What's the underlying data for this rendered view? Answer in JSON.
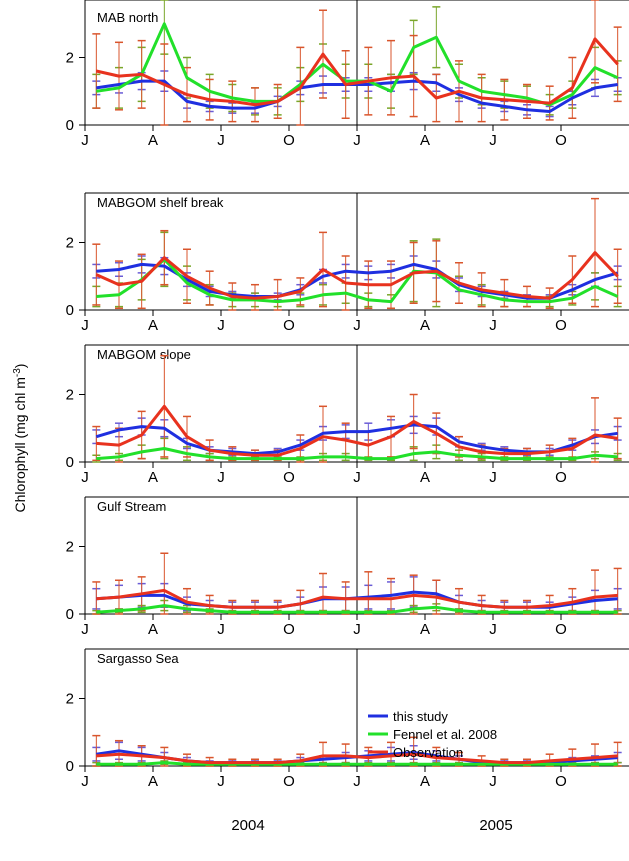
{
  "figure": {
    "ylabel": "Chlorophyll (mg chl m",
    "ylabel_sup": "-3",
    "ylabel_end": ")",
    "years": [
      "2004",
      "2005"
    ],
    "month_ticks": [
      "J",
      "A",
      "J",
      "O",
      "J",
      "A",
      "J",
      "O"
    ]
  },
  "legend": {
    "entries": [
      {
        "label": "this study",
        "color": "#1f2fe0"
      },
      {
        "label": "Fennel et al. 2008",
        "color": "#22e02a"
      },
      {
        "label": "Observation",
        "color": "#e8321e"
      }
    ]
  },
  "colors": {
    "this_study": "#1f2fe0",
    "fennel": "#22e02a",
    "observation": "#e8321e",
    "err_this_study": "#6a5cd6",
    "err_fennel": "#7aa62a",
    "err_observation": "#d9552c"
  },
  "chart_data": [
    {
      "type": "line",
      "title": "MAB north",
      "ylim": [
        0,
        3.5
      ],
      "yticks": [
        0,
        2
      ],
      "x": [
        0.5,
        1.5,
        2.5,
        3.5,
        4.5,
        5.5,
        6.5,
        7.5,
        8.5,
        9.5,
        10.5,
        11.5,
        12.5,
        13.5,
        14.5,
        15.5,
        16.5,
        17.5,
        18.5,
        19.5,
        20.5,
        21.5,
        22.5,
        23.5
      ],
      "series": [
        {
          "name": "this study",
          "values": [
            1.1,
            1.2,
            1.3,
            1.3,
            0.7,
            0.55,
            0.5,
            0.5,
            0.7,
            1.1,
            1.2,
            1.2,
            1.2,
            1.25,
            1.3,
            1.25,
            0.9,
            0.65,
            0.55,
            0.45,
            0.4,
            0.8,
            1.1,
            1.2
          ],
          "err": [
            0.2,
            0.25,
            0.25,
            0.3,
            0.2,
            0.15,
            0.15,
            0.15,
            0.15,
            0.2,
            0.25,
            0.2,
            0.2,
            0.25,
            0.25,
            0.25,
            0.2,
            0.15,
            0.15,
            0.15,
            0.15,
            0.2,
            0.25,
            0.2
          ]
        },
        {
          "name": "Fennel et al. 2008",
          "values": [
            1.0,
            1.1,
            1.5,
            3.0,
            1.4,
            1.0,
            0.8,
            0.7,
            0.7,
            1.2,
            1.8,
            1.3,
            1.3,
            1.0,
            2.3,
            2.6,
            1.3,
            1.0,
            0.9,
            0.8,
            0.6,
            0.9,
            1.7,
            1.4
          ],
          "err": [
            0.5,
            0.6,
            0.8,
            0.9,
            0.6,
            0.5,
            0.4,
            0.4,
            0.4,
            0.5,
            0.6,
            0.5,
            0.5,
            0.5,
            0.8,
            0.9,
            0.5,
            0.4,
            0.4,
            0.35,
            0.3,
            0.4,
            0.6,
            0.5
          ]
        },
        {
          "name": "Observation",
          "values": [
            1.6,
            1.45,
            1.5,
            1.2,
            0.9,
            0.75,
            0.7,
            0.6,
            0.7,
            1.1,
            2.1,
            1.2,
            1.3,
            1.4,
            1.45,
            0.8,
            1.0,
            0.8,
            0.75,
            0.7,
            0.65,
            1.1,
            2.55,
            1.8
          ],
          "err": [
            1.1,
            1.0,
            1.0,
            1.2,
            0.8,
            0.6,
            0.6,
            0.5,
            0.5,
            1.2,
            1.3,
            1.0,
            1.0,
            1.1,
            1.2,
            0.7,
            0.9,
            0.7,
            0.6,
            0.5,
            0.5,
            0.9,
            1.3,
            1.1
          ]
        }
      ]
    },
    {
      "type": "line",
      "title": "MABGOM shelf break",
      "ylim": [
        0,
        3.5
      ],
      "yticks": [
        0,
        2
      ],
      "x": [
        0.5,
        1.5,
        2.5,
        3.5,
        4.5,
        5.5,
        6.5,
        7.5,
        8.5,
        9.5,
        10.5,
        11.5,
        12.5,
        13.5,
        14.5,
        15.5,
        16.5,
        17.5,
        18.5,
        19.5,
        20.5,
        21.5,
        22.5,
        23.5
      ],
      "series": [
        {
          "name": "this study",
          "values": [
            1.15,
            1.2,
            1.35,
            1.3,
            0.9,
            0.55,
            0.45,
            0.4,
            0.4,
            0.6,
            1.0,
            1.15,
            1.1,
            1.15,
            1.35,
            1.2,
            0.75,
            0.55,
            0.45,
            0.35,
            0.35,
            0.6,
            0.9,
            1.1
          ],
          "err": [
            0.2,
            0.2,
            0.25,
            0.25,
            0.2,
            0.15,
            0.1,
            0.1,
            0.1,
            0.15,
            0.2,
            0.2,
            0.2,
            0.2,
            0.25,
            0.25,
            0.2,
            0.15,
            0.1,
            0.1,
            0.1,
            0.15,
            0.2,
            0.2
          ]
        },
        {
          "name": "Fennel et al. 2008",
          "values": [
            0.4,
            0.45,
            0.9,
            1.5,
            0.8,
            0.45,
            0.3,
            0.3,
            0.25,
            0.3,
            0.45,
            0.5,
            0.3,
            0.25,
            1.15,
            1.1,
            0.6,
            0.45,
            0.3,
            0.25,
            0.25,
            0.35,
            0.7,
            0.4
          ],
          "err": [
            0.3,
            0.35,
            0.6,
            0.8,
            0.5,
            0.3,
            0.2,
            0.2,
            0.15,
            0.2,
            0.3,
            0.3,
            0.2,
            0.2,
            0.9,
            1.0,
            0.4,
            0.3,
            0.2,
            0.15,
            0.15,
            0.2,
            0.4,
            0.3
          ]
        },
        {
          "name": "Observation",
          "values": [
            1.05,
            0.75,
            0.85,
            1.55,
            1.0,
            0.65,
            0.4,
            0.35,
            0.4,
            0.55,
            1.2,
            0.8,
            0.75,
            0.75,
            1.1,
            1.15,
            0.8,
            0.6,
            0.5,
            0.4,
            0.35,
            0.9,
            1.7,
            1.0
          ],
          "err": [
            0.9,
            0.7,
            0.8,
            0.8,
            0.8,
            0.5,
            0.4,
            0.4,
            0.5,
            0.4,
            1.1,
            0.8,
            0.7,
            0.7,
            0.9,
            0.9,
            0.6,
            0.5,
            0.4,
            0.3,
            0.3,
            0.7,
            1.6,
            0.8
          ]
        }
      ]
    },
    {
      "type": "line",
      "title": "MABGOM slope",
      "ylim": [
        0,
        3.5
      ],
      "yticks": [
        0,
        2
      ],
      "x": [
        0.5,
        1.5,
        2.5,
        3.5,
        4.5,
        5.5,
        6.5,
        7.5,
        8.5,
        9.5,
        10.5,
        11.5,
        12.5,
        13.5,
        14.5,
        15.5,
        16.5,
        17.5,
        18.5,
        19.5,
        20.5,
        21.5,
        22.5,
        23.5
      ],
      "series": [
        {
          "name": "this study",
          "values": [
            0.75,
            0.95,
            1.05,
            1.0,
            0.55,
            0.35,
            0.3,
            0.25,
            0.3,
            0.5,
            0.85,
            0.9,
            0.9,
            1.0,
            1.1,
            1.05,
            0.6,
            0.45,
            0.35,
            0.3,
            0.3,
            0.5,
            0.75,
            0.85
          ],
          "err": [
            0.2,
            0.2,
            0.25,
            0.25,
            0.15,
            0.1,
            0.1,
            0.1,
            0.1,
            0.15,
            0.2,
            0.2,
            0.25,
            0.25,
            0.25,
            0.25,
            0.15,
            0.1,
            0.1,
            0.1,
            0.1,
            0.15,
            0.2,
            0.2
          ]
        },
        {
          "name": "Fennel et al. 2008",
          "values": [
            0.1,
            0.15,
            0.3,
            0.4,
            0.25,
            0.15,
            0.1,
            0.1,
            0.1,
            0.1,
            0.15,
            0.15,
            0.1,
            0.1,
            0.25,
            0.3,
            0.2,
            0.15,
            0.1,
            0.1,
            0.1,
            0.1,
            0.2,
            0.15
          ],
          "err": [
            0.1,
            0.1,
            0.2,
            0.3,
            0.2,
            0.1,
            0.05,
            0.05,
            0.05,
            0.05,
            0.1,
            0.1,
            0.05,
            0.05,
            0.2,
            0.2,
            0.15,
            0.1,
            0.05,
            0.05,
            0.05,
            0.05,
            0.1,
            0.1
          ]
        },
        {
          "name": "Observation",
          "values": [
            0.55,
            0.5,
            0.8,
            1.65,
            0.75,
            0.35,
            0.25,
            0.2,
            0.2,
            0.4,
            0.75,
            0.65,
            0.5,
            0.75,
            1.2,
            0.85,
            0.45,
            0.3,
            0.25,
            0.25,
            0.3,
            0.4,
            0.8,
            0.7
          ],
          "err": [
            0.5,
            0.5,
            0.7,
            1.5,
            0.6,
            0.3,
            0.2,
            0.15,
            0.15,
            0.4,
            0.9,
            0.5,
            0.4,
            0.6,
            0.8,
            0.6,
            0.3,
            0.2,
            0.15,
            0.15,
            0.2,
            0.3,
            1.1,
            0.6
          ]
        }
      ]
    },
    {
      "type": "line",
      "title": "Gulf Stream",
      "ylim": [
        0,
        3.5
      ],
      "yticks": [
        0,
        2
      ],
      "x": [
        0.5,
        1.5,
        2.5,
        3.5,
        4.5,
        5.5,
        6.5,
        7.5,
        8.5,
        9.5,
        10.5,
        11.5,
        12.5,
        13.5,
        14.5,
        15.5,
        16.5,
        17.5,
        18.5,
        19.5,
        20.5,
        21.5,
        22.5,
        23.5
      ],
      "series": [
        {
          "name": "this study",
          "values": [
            0.45,
            0.5,
            0.55,
            0.55,
            0.3,
            0.25,
            0.2,
            0.2,
            0.2,
            0.3,
            0.45,
            0.45,
            0.5,
            0.55,
            0.65,
            0.6,
            0.35,
            0.25,
            0.2,
            0.2,
            0.2,
            0.3,
            0.4,
            0.45
          ],
          "err": [
            0.3,
            0.35,
            0.35,
            0.35,
            0.2,
            0.15,
            0.15,
            0.15,
            0.15,
            0.2,
            0.35,
            0.35,
            0.35,
            0.4,
            0.45,
            0.4,
            0.2,
            0.15,
            0.15,
            0.15,
            0.15,
            0.2,
            0.3,
            0.3
          ]
        },
        {
          "name": "Fennel et al. 2008",
          "values": [
            0.05,
            0.1,
            0.15,
            0.25,
            0.15,
            0.1,
            0.05,
            0.05,
            0.05,
            0.05,
            0.05,
            0.05,
            0.05,
            0.05,
            0.15,
            0.2,
            0.1,
            0.05,
            0.05,
            0.05,
            0.05,
            0.05,
            0.05,
            0.05
          ],
          "err": [
            0.05,
            0.05,
            0.1,
            0.15,
            0.1,
            0.05,
            0.05,
            0.05,
            0.05,
            0.05,
            0.05,
            0.05,
            0.05,
            0.05,
            0.1,
            0.1,
            0.05,
            0.05,
            0.05,
            0.05,
            0.05,
            0.05,
            0.05,
            0.05
          ]
        },
        {
          "name": "Observation",
          "values": [
            0.45,
            0.5,
            0.6,
            0.7,
            0.35,
            0.25,
            0.2,
            0.2,
            0.2,
            0.3,
            0.5,
            0.45,
            0.45,
            0.45,
            0.55,
            0.5,
            0.35,
            0.25,
            0.2,
            0.2,
            0.25,
            0.35,
            0.5,
            0.55
          ],
          "err": [
            0.5,
            0.5,
            0.5,
            1.1,
            0.4,
            0.3,
            0.2,
            0.2,
            0.2,
            0.4,
            0.7,
            0.5,
            0.8,
            0.6,
            0.6,
            0.5,
            0.4,
            0.3,
            0.2,
            0.2,
            0.3,
            0.4,
            0.8,
            0.8
          ]
        }
      ]
    },
    {
      "type": "line",
      "title": "Sargasso Sea",
      "ylim": [
        0,
        3.5
      ],
      "yticks": [
        0,
        2
      ],
      "x": [
        0.5,
        1.5,
        2.5,
        3.5,
        4.5,
        5.5,
        6.5,
        7.5,
        8.5,
        9.5,
        10.5,
        11.5,
        12.5,
        13.5,
        14.5,
        15.5,
        16.5,
        17.5,
        18.5,
        19.5,
        20.5,
        21.5,
        22.5,
        23.5
      ],
      "series": [
        {
          "name": "this study",
          "values": [
            0.35,
            0.45,
            0.35,
            0.25,
            0.15,
            0.1,
            0.1,
            0.1,
            0.1,
            0.15,
            0.2,
            0.25,
            0.3,
            0.35,
            0.4,
            0.3,
            0.2,
            0.1,
            0.1,
            0.1,
            0.1,
            0.15,
            0.2,
            0.25
          ],
          "err": [
            0.2,
            0.25,
            0.2,
            0.15,
            0.1,
            0.05,
            0.05,
            0.05,
            0.05,
            0.1,
            0.1,
            0.15,
            0.15,
            0.2,
            0.2,
            0.15,
            0.1,
            0.05,
            0.05,
            0.05,
            0.05,
            0.1,
            0.1,
            0.15
          ]
        },
        {
          "name": "Fennel et al. 2008",
          "values": [
            0.05,
            0.05,
            0.05,
            0.1,
            0.05,
            0.05,
            0.05,
            0.05,
            0.05,
            0.05,
            0.05,
            0.05,
            0.05,
            0.05,
            0.05,
            0.05,
            0.05,
            0.05,
            0.05,
            0.05,
            0.05,
            0.05,
            0.05,
            0.05
          ],
          "err": [
            0.05,
            0.05,
            0.05,
            0.05,
            0.05,
            0.05,
            0.05,
            0.05,
            0.05,
            0.05,
            0.05,
            0.05,
            0.05,
            0.05,
            0.05,
            0.05,
            0.05,
            0.05,
            0.05,
            0.05,
            0.05,
            0.05,
            0.05,
            0.05
          ]
        },
        {
          "name": "Observation",
          "values": [
            0.3,
            0.35,
            0.3,
            0.25,
            0.15,
            0.1,
            0.1,
            0.1,
            0.1,
            0.15,
            0.3,
            0.3,
            0.25,
            0.3,
            0.35,
            0.25,
            0.2,
            0.15,
            0.1,
            0.1,
            0.15,
            0.2,
            0.25,
            0.3
          ],
          "err": [
            0.6,
            0.4,
            0.3,
            0.3,
            0.2,
            0.15,
            0.1,
            0.1,
            0.1,
            0.2,
            0.4,
            0.35,
            0.3,
            0.4,
            0.5,
            0.3,
            0.2,
            0.15,
            0.1,
            0.1,
            0.2,
            0.3,
            0.4,
            0.4
          ]
        }
      ]
    }
  ]
}
